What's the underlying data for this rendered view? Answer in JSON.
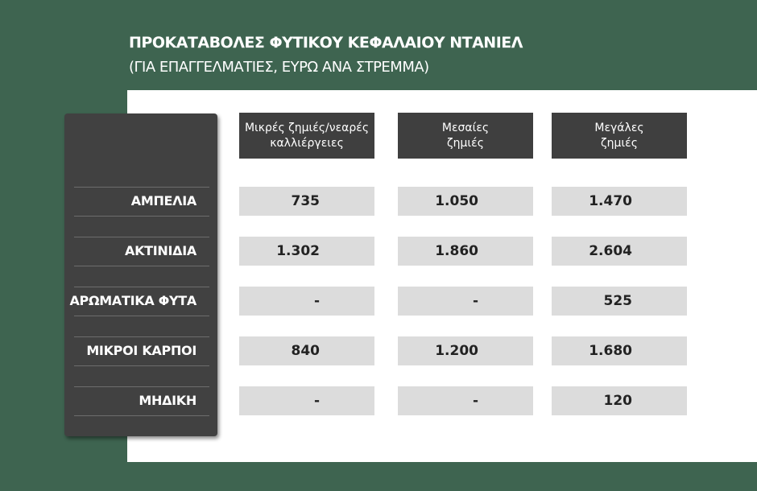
{
  "header": {
    "title": "ΠΡΟΚΑΤΑΒΟΛΕΣ ΦΥΤΙΚΟΥ ΚΕΦΑΛΑΙΟΥ ΝΤΑΝΙΕΛ",
    "subtitle": "(ΓΙΑ ΕΠΑΓΓΕΛΜΑΤΙΕΣ, ΕΥΡΩ ΑΝΑ ΣΤΡΕΜΜΑ)"
  },
  "table": {
    "columns": [
      [
        "Μικρές ζημιές/νεαρές",
        "καλλιέργειες"
      ],
      [
        "Μεσαίες",
        "ζημιές"
      ],
      [
        "Μεγάλες",
        "ζημιές"
      ]
    ],
    "row_labels": [
      "ΑΜΠΕΛΙΑ",
      "ΑΚΤΙΝΙΔΙΑ",
      "ΑΡΩΜΑΤΙΚΑ ΦΥΤΑ",
      "ΜΙΚΡΟΙ ΚΑΡΠΟΙ",
      "ΜΗΔΙΚΗ"
    ],
    "rows": [
      [
        "735",
        "1.050",
        "1.470"
      ],
      [
        "1.302",
        "1.860",
        "2.604"
      ],
      [
        "-",
        "-",
        "525"
      ],
      [
        "840",
        "1.200",
        "1.680"
      ],
      [
        "-",
        "-",
        "120"
      ]
    ]
  }
}
